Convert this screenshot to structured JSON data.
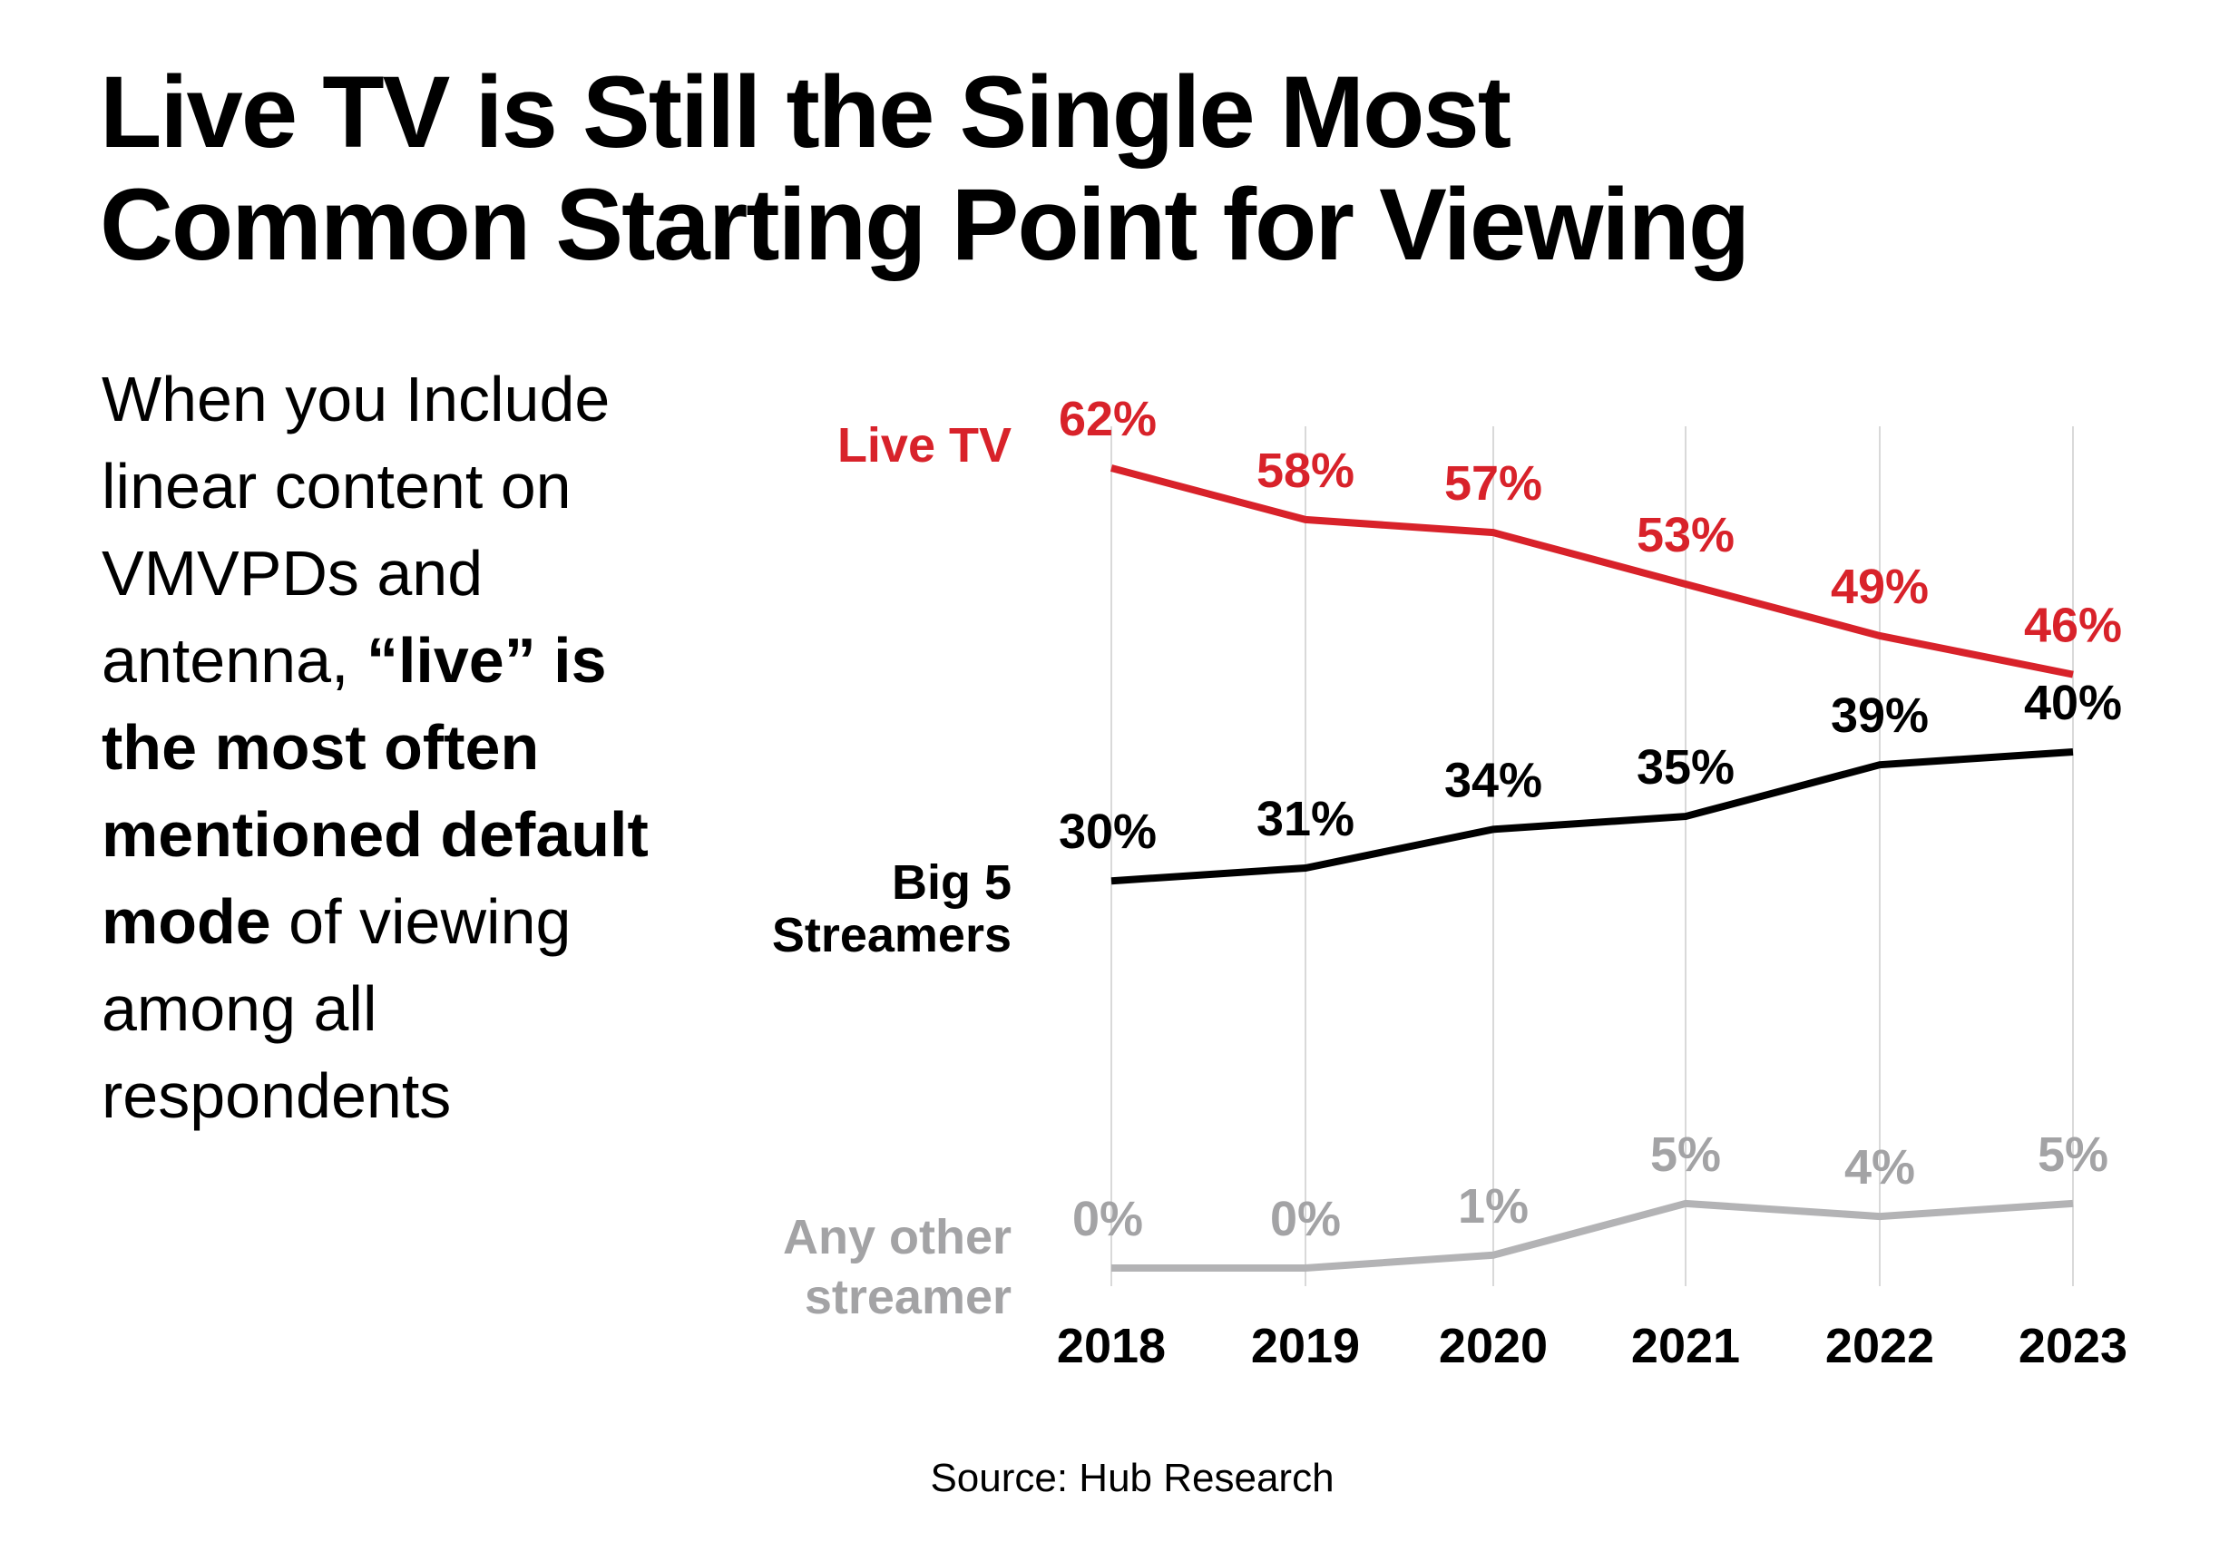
{
  "title": [
    "Live TV is Still the Single Most",
    "Common Starting Point for Viewing"
  ],
  "description": [
    {
      "text": "When you Include linear content on VMVPDs and antenna, ",
      "bold": false
    },
    {
      "text": "“live” is the most often mentioned default mode",
      "bold": true
    },
    {
      "text": " of viewing among all respondents",
      "bold": false
    }
  ],
  "source": "Source: Hub Research",
  "colors": {
    "live_tv": "#d8222a",
    "big5": "#000000",
    "other": "#b3b3b5",
    "other_label": "#a3a3a5",
    "grid": "#d9d9d9"
  },
  "chart_data": {
    "type": "line",
    "x": [
      "2018",
      "2019",
      "2020",
      "2021",
      "2022",
      "2023"
    ],
    "grid": "vertical",
    "legend": "inline-left",
    "series": [
      {
        "name": "Live TV",
        "label_lines": [
          "Live TV"
        ],
        "values": [
          62,
          58,
          57,
          53,
          49,
          46
        ],
        "data_labels": [
          "62%",
          "58%",
          "57%",
          "53%",
          "49%",
          "46%"
        ]
      },
      {
        "name": "Big 5 Streamers",
        "label_lines": [
          "Big 5",
          "Streamers"
        ],
        "values": [
          30,
          31,
          34,
          35,
          39,
          40
        ],
        "data_labels": [
          "30%",
          "31%",
          "34%",
          "35%",
          "39%",
          "40%"
        ]
      },
      {
        "name": "Any other streamer",
        "label_lines": [
          "Any other",
          "streamer"
        ],
        "values": [
          0,
          0,
          1,
          5,
          4,
          5
        ],
        "data_labels": [
          "0%",
          "0%",
          "1%",
          "5%",
          "4%",
          "5%"
        ]
      }
    ],
    "ylim": [
      0,
      62
    ]
  }
}
